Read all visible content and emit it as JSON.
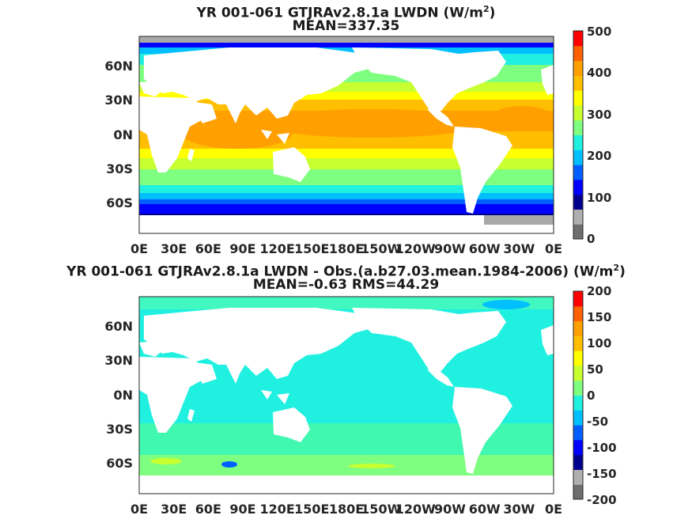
{
  "panels": [
    {
      "title_line1": "YR 001-061 GTJRAv2.8.1a LWDN (W/m",
      "title_sup": "2",
      "title_close": ")",
      "title_line2": "MEAN=337.35",
      "variable": "LWDN",
      "units": "W/m2",
      "colorbar_ticks": [
        "500",
        "400",
        "300",
        "200",
        "100",
        "0"
      ],
      "colorbar_range": [
        0,
        500
      ]
    },
    {
      "title_line1": "YR 001-061 GTJRAv2.8.1a LWDN - Obs.(a.b27.03.mean.1984-2006) (W/m",
      "title_sup": "2",
      "title_close": ")",
      "title_line2": "MEAN=-0.63 RMS=44.29",
      "variable": "LWDN difference",
      "units": "W/m2",
      "colorbar_ticks": [
        "200",
        "150",
        "100",
        "50",
        "0",
        "-50",
        "-100",
        "-150",
        "-200"
      ],
      "colorbar_range": [
        -200,
        200
      ]
    }
  ],
  "map": {
    "lat_labels": [
      "60N",
      "30N",
      "0N",
      "30S",
      "60S"
    ],
    "lon_labels": [
      "0E",
      "30E",
      "60E",
      "90E",
      "120E",
      "150E",
      "180E",
      "150W",
      "120W",
      "90W",
      "60W",
      "30W",
      "0E"
    ]
  },
  "colors": {
    "land": "#ffffff",
    "ice_gray": "#a8a8a8",
    "colormap": [
      "#6e6e6e",
      "#b0b0b0",
      "#00008f",
      "#0000ff",
      "#0060ff",
      "#00bfff",
      "#20f0e0",
      "#7fff7f",
      "#c8ff30",
      "#ffff00",
      "#ffbf00",
      "#ff9f00",
      "#ff6000",
      "#ff0000"
    ]
  }
}
